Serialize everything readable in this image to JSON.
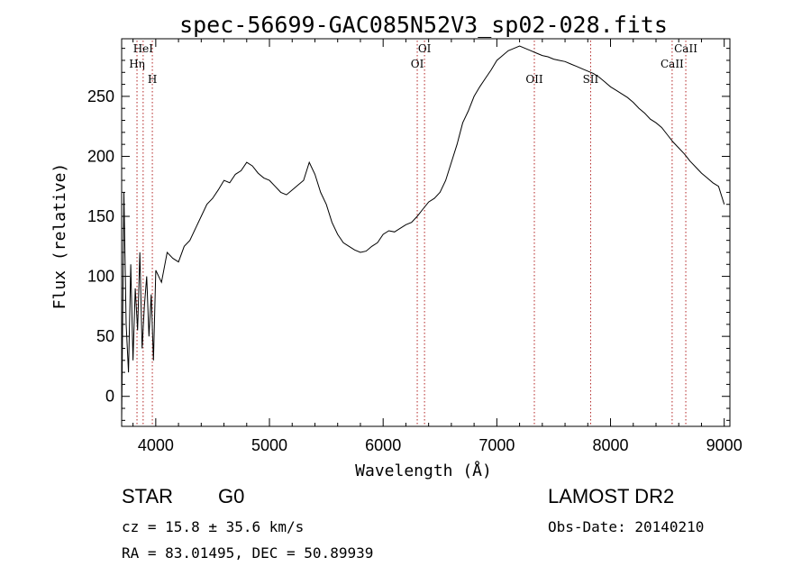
{
  "chart_data": {
    "type": "line",
    "title": "spec-56699-GAC085N52V3_sp02-028.fits",
    "xlabel": "Wavelength (Å)",
    "ylabel": "Flux (relative)",
    "xlim": [
      3700,
      9050
    ],
    "ylim": [
      -25,
      298
    ],
    "xticks": [
      4000,
      5000,
      6000,
      7000,
      8000,
      9000
    ],
    "yticks": [
      0,
      50,
      100,
      150,
      200,
      250
    ],
    "grid": false,
    "line_color": "#000000",
    "marker_color": "#b22222",
    "series": [
      {
        "x": [
          3700,
          3720,
          3740,
          3760,
          3780,
          3800,
          3820,
          3840,
          3860,
          3880,
          3900,
          3920,
          3940,
          3960,
          3980,
          4000,
          4050,
          4100,
          4150,
          4200,
          4250,
          4300,
          4350,
          4400,
          4450,
          4500,
          4550,
          4600,
          4650,
          4700,
          4750,
          4800,
          4850,
          4900,
          4950,
          5000,
          5050,
          5100,
          5150,
          5200,
          5250,
          5300,
          5350,
          5400,
          5450,
          5500,
          5550,
          5600,
          5650,
          5700,
          5750,
          5800,
          5850,
          5900,
          5950,
          6000,
          6050,
          6100,
          6150,
          6200,
          6250,
          6300,
          6350,
          6400,
          6450,
          6500,
          6550,
          6600,
          6650,
          6700,
          6750,
          6800,
          6850,
          6900,
          6950,
          7000,
          7050,
          7100,
          7150,
          7200,
          7250,
          7300,
          7350,
          7400,
          7450,
          7500,
          7550,
          7600,
          7650,
          7700,
          7750,
          7800,
          7850,
          7900,
          7950,
          8000,
          8050,
          8100,
          8150,
          8200,
          8250,
          8300,
          8350,
          8400,
          8450,
          8500,
          8550,
          8600,
          8650,
          8700,
          8750,
          8800,
          8850,
          8900,
          8950,
          9000
        ],
        "y": [
          -20,
          170,
          60,
          20,
          110,
          30,
          90,
          55,
          120,
          40,
          75,
          100,
          50,
          85,
          30,
          105,
          95,
          120,
          115,
          112,
          125,
          130,
          140,
          150,
          160,
          165,
          172,
          180,
          178,
          185,
          188,
          195,
          192,
          186,
          182,
          180,
          175,
          170,
          168,
          172,
          176,
          180,
          195,
          185,
          170,
          160,
          145,
          135,
          128,
          125,
          122,
          120,
          121,
          125,
          128,
          135,
          138,
          137,
          140,
          143,
          145,
          150,
          156,
          162,
          165,
          170,
          180,
          195,
          210,
          228,
          238,
          250,
          258,
          265,
          272,
          280,
          284,
          288,
          290,
          292,
          290,
          288,
          286,
          284,
          283,
          281,
          280,
          279,
          277,
          275,
          273,
          271,
          269,
          266,
          262,
          258,
          255,
          252,
          249,
          245,
          240,
          236,
          231,
          228,
          224,
          218,
          212,
          207,
          202,
          196,
          191,
          186,
          182,
          178,
          175,
          160
        ]
      }
    ],
    "markers": [
      {
        "label": "HeI",
        "x": 3889
      },
      {
        "label": "Hη",
        "x": 3835
      },
      {
        "label": "H",
        "x": 3970
      },
      {
        "label": "OI",
        "x": 6364
      },
      {
        "label": "OI",
        "x": 6300
      },
      {
        "label": "OII",
        "x": 7330
      },
      {
        "label": "SII",
        "x": 7825
      },
      {
        "label": "CaII",
        "x": 8662
      },
      {
        "label": "CaII",
        "x": 8542
      }
    ]
  },
  "info": {
    "class_label": "STAR",
    "subclass_label": "G0",
    "redshift": "cz = 15.8 ± 35.6 km/s",
    "coords": "RA =  83.01495, DEC =  50.89939",
    "survey": "LAMOST DR2",
    "obs_date": "Obs-Date: 20140210"
  }
}
